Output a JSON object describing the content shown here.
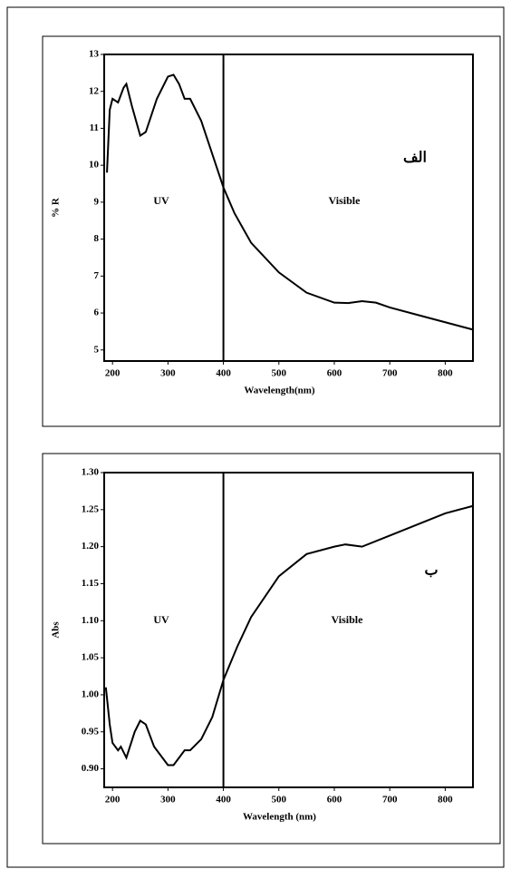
{
  "chart_data": [
    {
      "type": "line",
      "ylabel": "% R",
      "xlabel": "Wavelength(nm)",
      "annotations": [
        "UV",
        "Visible",
        "الف"
      ],
      "reference_line": 400,
      "x": [
        190,
        195,
        200,
        210,
        220,
        225,
        235,
        250,
        260,
        280,
        300,
        310,
        320,
        330,
        340,
        360,
        380,
        400,
        420,
        450,
        500,
        550,
        600,
        625,
        650,
        675,
        700,
        750,
        800,
        850
      ],
      "values": [
        9.8,
        11.5,
        11.8,
        11.7,
        12.1,
        12.2,
        11.6,
        10.8,
        10.9,
        11.8,
        12.4,
        12.45,
        12.2,
        11.8,
        11.8,
        11.2,
        10.3,
        9.4,
        8.7,
        7.9,
        7.1,
        6.55,
        6.28,
        6.27,
        6.32,
        6.28,
        6.15,
        5.95,
        5.75,
        5.55
      ],
      "color": "#000000",
      "xlim": [
        185,
        850
      ],
      "xticks": [
        200,
        300,
        400,
        500,
        600,
        700,
        800
      ],
      "ylim": [
        4.7,
        13
      ],
      "yticks": [
        5,
        6,
        7,
        8,
        9,
        10,
        11,
        12,
        13
      ]
    },
    {
      "type": "line",
      "ylabel": "Abs",
      "xlabel": "Wavelength (nm)",
      "annotations": [
        "UV",
        "Visible",
        "ب"
      ],
      "reference_line": 400,
      "x": [
        188,
        195,
        200,
        210,
        215,
        225,
        240,
        250,
        260,
        275,
        300,
        310,
        320,
        330,
        340,
        360,
        380,
        400,
        425,
        450,
        500,
        550,
        600,
        620,
        650,
        700,
        750,
        800,
        850
      ],
      "values": [
        1.01,
        0.96,
        0.935,
        0.925,
        0.93,
        0.915,
        0.95,
        0.965,
        0.96,
        0.93,
        0.905,
        0.905,
        0.915,
        0.925,
        0.925,
        0.94,
        0.97,
        1.02,
        1.065,
        1.105,
        1.16,
        1.19,
        1.2,
        1.203,
        1.2,
        1.215,
        1.23,
        1.245,
        1.255
      ],
      "color": "#000000",
      "xlim": [
        185,
        850
      ],
      "xticks": [
        200,
        300,
        400,
        500,
        600,
        700,
        800
      ],
      "ylim": [
        0.875,
        1.3
      ],
      "yticks": [
        {
          "value": 0.9,
          "label": "0.90"
        },
        {
          "value": 0.95,
          "label": "0.95"
        },
        {
          "value": 1,
          "label": "1.00"
        },
        {
          "value": 1.05,
          "label": "1.05"
        },
        {
          "value": 1.1,
          "label": "1.10"
        },
        {
          "value": 1.15,
          "label": "1.15"
        },
        {
          "value": 1.2,
          "label": "1.20"
        },
        {
          "value": 1.25,
          "label": "1.25"
        },
        {
          "value": 1.3,
          "label": "1.30"
        }
      ]
    }
  ]
}
